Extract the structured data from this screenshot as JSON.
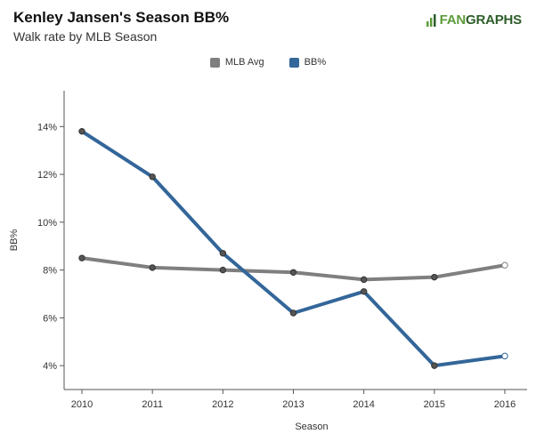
{
  "header": {
    "title": "Kenley Jansen's Season BB%",
    "subtitle": "Walk rate by MLB Season",
    "brand_fan": "FAN",
    "brand_graphs": "GRAPHS"
  },
  "colors": {
    "mlb_avg": "#7f7f7f",
    "bb_pct": "#336699",
    "axis": "#555555",
    "brand_green": "#5c9b3a"
  },
  "chart_data": {
    "type": "line",
    "title": "Kenley Jansen's Season BB%",
    "subtitle": "Walk rate by MLB Season",
    "xlabel": "Season",
    "ylabel": "BB%",
    "x": [
      2010,
      2011,
      2012,
      2013,
      2014,
      2015,
      2016
    ],
    "x_tick_labels": [
      "2010",
      "2011",
      "2012",
      "2013",
      "2014",
      "2015",
      "2016"
    ],
    "ylim": [
      3,
      15.5
    ],
    "y_ticks": [
      4,
      6,
      8,
      10,
      12,
      14
    ],
    "y_tick_labels": [
      "4%",
      "6%",
      "8%",
      "10%",
      "12%",
      "14%"
    ],
    "legend_position": "top-center",
    "grid": false,
    "series": [
      {
        "name": "MLB Avg",
        "color": "#7f7f7f",
        "values": [
          8.5,
          8.1,
          8.0,
          7.9,
          7.6,
          7.7,
          8.2
        ]
      },
      {
        "name": "BB%",
        "color": "#336699",
        "values": [
          13.8,
          11.9,
          8.7,
          6.2,
          7.1,
          4.0,
          4.4
        ]
      }
    ]
  }
}
